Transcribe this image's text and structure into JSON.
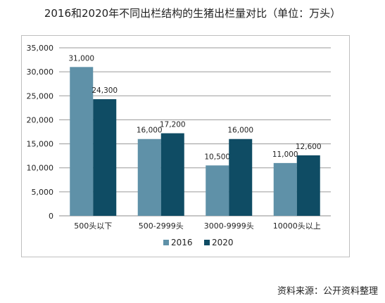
{
  "title": "2016和2020年不同出栏结构的生猪出栏量对比（单位：万头）",
  "source": "资料来源：公开资料整理",
  "chart_data": {
    "type": "bar",
    "title": "2016和2020年不同出栏结构的生猪出栏量对比（单位：万头）",
    "categories": [
      "500头以下",
      "500-2999头",
      "3000-9999头",
      "10000头以上"
    ],
    "series": [
      {
        "name": "2016",
        "values": [
          31000,
          16000,
          10500,
          11000
        ],
        "labels": [
          "31,000",
          "16,000",
          "10,500",
          "11,000"
        ],
        "color": "#5f91a8"
      },
      {
        "name": "2020",
        "values": [
          24300,
          17200,
          16000,
          12600
        ],
        "labels": [
          "24,300",
          "17,200",
          "16,000",
          "12,600"
        ],
        "color": "#0f4c64"
      }
    ],
    "yticks": [
      "0",
      "5,000",
      "10,000",
      "15,000",
      "20,000",
      "25,000",
      "30,000",
      "35,000"
    ],
    "ylim": [
      0,
      35000
    ],
    "grid": true,
    "legend": "bottom"
  }
}
